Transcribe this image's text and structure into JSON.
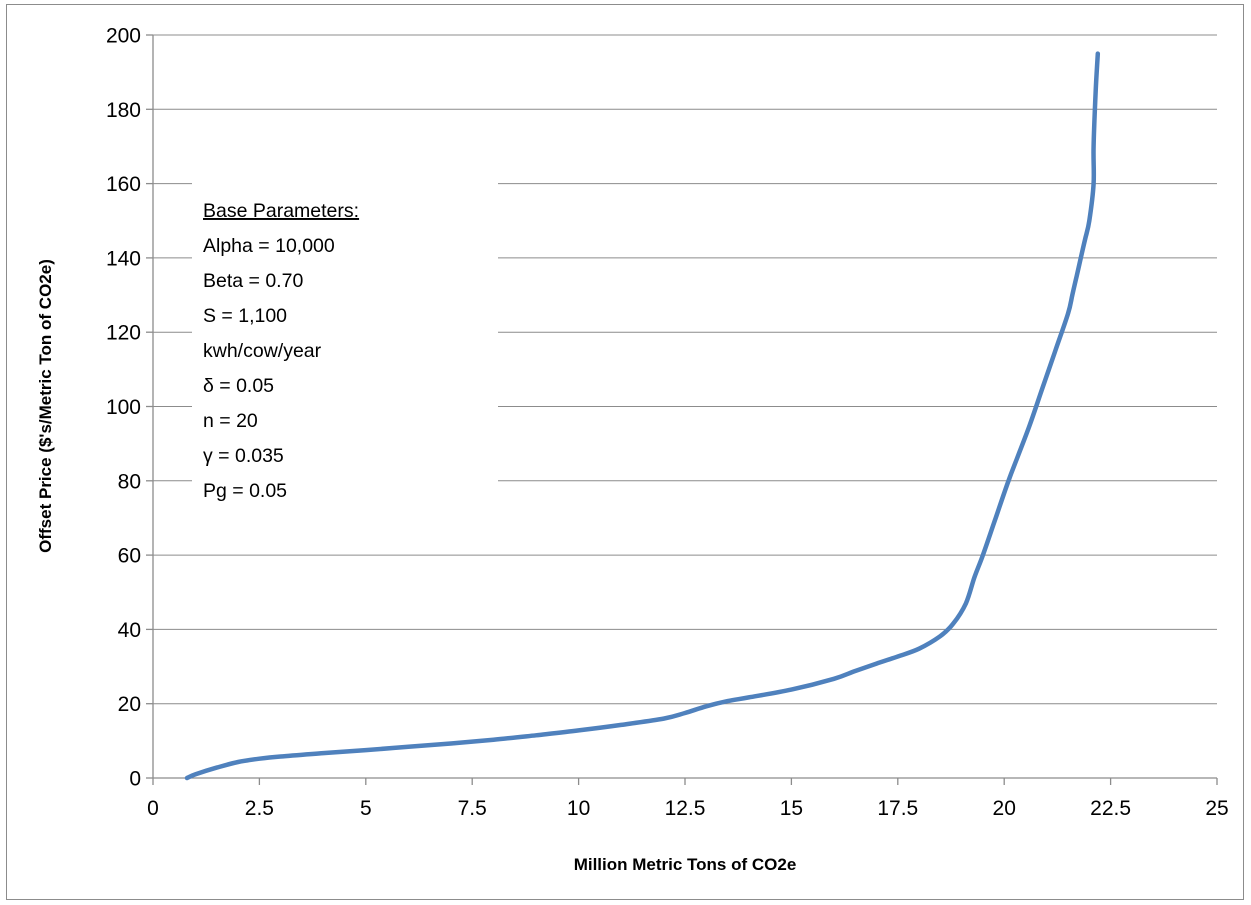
{
  "chart_data": {
    "type": "line",
    "xlabel": "Million Metric Tons of CO2e",
    "ylabel": "Offset Price ($'s/Metric Ton of CO2e)",
    "xlim": [
      0,
      25
    ],
    "ylim": [
      0,
      200
    ],
    "x_ticks": [
      "0",
      "2.5",
      "5",
      "7.5",
      "10",
      "12.5",
      "15",
      "17.5",
      "20",
      "22.5",
      "25"
    ],
    "y_ticks": [
      "0",
      "20",
      "40",
      "60",
      "80",
      "100",
      "120",
      "140",
      "160",
      "180",
      "200"
    ],
    "grid": "horizontal",
    "legend": "none",
    "series": [
      {
        "color": "#4f81bd",
        "x": [
          0.8,
          1.0,
          1.5,
          2.0,
          2.5,
          3.0,
          4.0,
          5.0,
          6.0,
          7.0,
          8.0,
          9.0,
          10.0,
          11.0,
          12.0,
          12.5,
          13.0,
          13.5,
          14.0,
          15.0,
          16.0,
          16.5,
          17.0,
          17.5,
          18.0,
          18.5,
          18.8,
          19.1,
          19.3,
          19.5,
          19.8,
          20.1,
          20.3,
          20.6,
          20.9,
          21.2,
          21.5,
          21.6,
          21.7,
          21.8,
          21.9,
          22.0,
          22.1,
          22.1,
          22.15,
          22.2
        ],
        "y": [
          0,
          1,
          2.8,
          4.3,
          5.2,
          5.8,
          6.7,
          7.5,
          8.4,
          9.3,
          10.3,
          11.5,
          12.8,
          14.3,
          16.0,
          17.5,
          19.3,
          20.7,
          21.7,
          23.8,
          26.7,
          28.8,
          30.8,
          32.7,
          34.8,
          38.2,
          41.5,
          47.0,
          54.0,
          60.0,
          70.0,
          80.0,
          86.0,
          95.0,
          105.0,
          115.0,
          125.0,
          130.0,
          135.0,
          140.0,
          145.0,
          150.0,
          160.0,
          170.0,
          185.0,
          195.0
        ]
      }
    ]
  },
  "annotation": {
    "heading": "Base Parameters:",
    "lines": [
      "Alpha = 10,000",
      "Beta = 0.70",
      "S = 1,100",
      "kwh/cow/year",
      "δ = 0.05",
      "n = 20",
      "γ = 0.035",
      "Pg = 0.05"
    ]
  }
}
